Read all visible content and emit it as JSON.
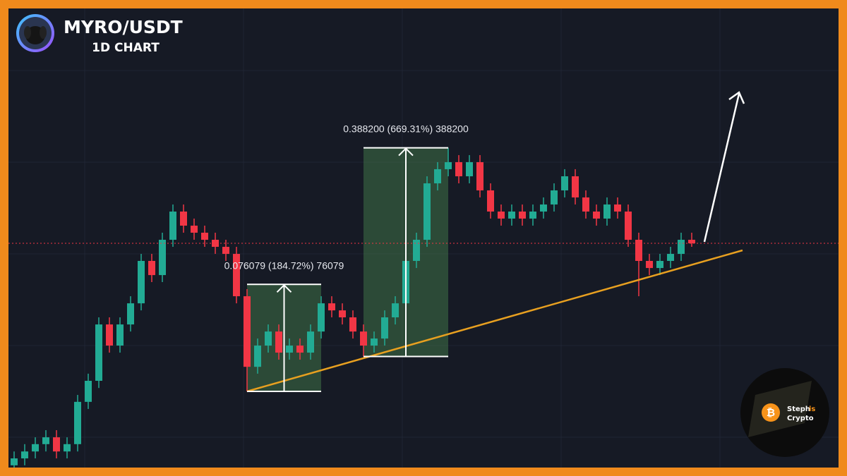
{
  "chart_data": {
    "type": "candlestick",
    "title": "MYRO/USDT",
    "subtitle": "1D CHART",
    "log_scale": true,
    "ylim": [
      0.0193,
      1.767
    ],
    "up_color": "#22ab94",
    "down_color": "#f23645",
    "open": [
      0.02,
      0.0214,
      0.0229,
      0.0246,
      0.0263,
      0.0229,
      0.0246,
      0.0372,
      0.0457,
      0.0793,
      0.0645,
      0.0793,
      0.0975,
      0.1476,
      0.1285,
      0.1815,
      0.2392,
      0.2084,
      0.1945,
      0.1815,
      0.1694,
      0.1581,
      0.1045,
      0.0524,
      0.0645,
      0.074,
      0.0602,
      0.0645,
      0.0602,
      0.074,
      0.0975,
      0.091,
      0.085,
      0.074,
      0.0645,
      0.0691,
      0.085,
      0.0975,
      0.1476,
      0.1815,
      0.3152,
      0.3619,
      0.3877,
      0.3377,
      0.3877,
      0.2942,
      0.2392,
      0.2233,
      0.2392,
      0.2233,
      0.2392,
      0.2563,
      0.2942,
      0.3377,
      0.2746,
      0.2392,
      0.2233,
      0.2563,
      0.2392,
      0.1815,
      0.1476,
      0.1377,
      0.1476,
      0.1581,
      0.1815
    ],
    "high": [
      0.0229,
      0.0246,
      0.0263,
      0.0282,
      0.0282,
      0.0263,
      0.0398,
      0.049,
      0.085,
      0.085,
      0.085,
      0.1045,
      0.1581,
      0.1581,
      0.1945,
      0.2563,
      0.2563,
      0.2233,
      0.2084,
      0.1945,
      0.1815,
      0.1694,
      0.112,
      0.0691,
      0.0793,
      0.0793,
      0.0691,
      0.0691,
      0.0793,
      0.1045,
      0.1045,
      0.0975,
      0.091,
      0.0793,
      0.074,
      0.091,
      0.1045,
      0.1581,
      0.1945,
      0.3377,
      0.3877,
      0.4462,
      0.4154,
      0.4154,
      0.4154,
      0.3152,
      0.2563,
      0.2563,
      0.2563,
      0.2563,
      0.2746,
      0.3152,
      0.3619,
      0.3619,
      0.2942,
      0.2563,
      0.2746,
      0.2746,
      0.2563,
      0.1945,
      0.1581,
      0.1581,
      0.1694,
      0.1945,
      0.1945
    ],
    "low": [
      0.0186,
      0.02,
      0.0214,
      0.0229,
      0.0214,
      0.0214,
      0.0229,
      0.0347,
      0.0426,
      0.0602,
      0.0602,
      0.074,
      0.091,
      0.12,
      0.12,
      0.1694,
      0.1945,
      0.1815,
      0.1694,
      0.1581,
      0.1476,
      0.0975,
      0.0412,
      0.049,
      0.0602,
      0.0562,
      0.0562,
      0.0562,
      0.0562,
      0.0691,
      0.085,
      0.0793,
      0.0691,
      0.058,
      0.0602,
      0.0645,
      0.0793,
      0.091,
      0.1377,
      0.1694,
      0.2942,
      0.3377,
      0.3152,
      0.3152,
      0.2746,
      0.2233,
      0.2084,
      0.2084,
      0.2084,
      0.2084,
      0.2233,
      0.2392,
      0.2746,
      0.2563,
      0.2233,
      0.2084,
      0.2084,
      0.2233,
      0.1694,
      0.1045,
      0.1285,
      0.1285,
      0.1377,
      0.1476,
      0.1694
    ],
    "close": [
      0.0214,
      0.0229,
      0.0246,
      0.0263,
      0.0229,
      0.0246,
      0.0372,
      0.0457,
      0.0793,
      0.0645,
      0.0793,
      0.0975,
      0.1476,
      0.1285,
      0.1815,
      0.2392,
      0.2084,
      0.1945,
      0.1815,
      0.1694,
      0.1581,
      0.1045,
      0.0524,
      0.0645,
      0.074,
      0.0602,
      0.0645,
      0.0602,
      0.074,
      0.0975,
      0.091,
      0.085,
      0.074,
      0.0645,
      0.0691,
      0.085,
      0.0975,
      0.1476,
      0.1815,
      0.3152,
      0.3619,
      0.3877,
      0.3377,
      0.3877,
      0.2942,
      0.2392,
      0.2233,
      0.2392,
      0.2233,
      0.2392,
      0.2563,
      0.2942,
      0.3377,
      0.2746,
      0.2392,
      0.2233,
      0.2563,
      0.2392,
      0.1815,
      0.1476,
      0.1377,
      0.1476,
      0.1581,
      0.1815,
      0.1753
    ],
    "measures": [
      {
        "label": "0.076079 (184.72%) 76079",
        "low": 0.0412,
        "high": 0.1173,
        "start": 22,
        "end": 29
      },
      {
        "label": "0.388200 (669.31%) 388200",
        "low": 0.058,
        "high": 0.4462,
        "start": 33,
        "end": 41
      }
    ],
    "watermark": {
      "line1": "Steph",
      "line2": "is",
      "line3": "Crypto",
      "icon": "₿"
    }
  }
}
